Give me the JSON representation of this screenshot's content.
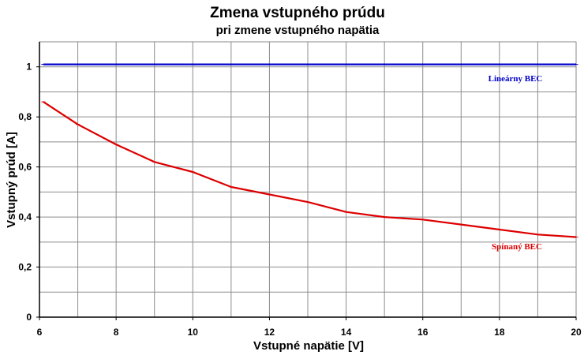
{
  "chart_data": {
    "type": "line",
    "title": "Zmena vstupného prúdu",
    "subtitle": "pri zmene vstupného napätia",
    "xlabel": "Vstupné napätie [V]",
    "ylabel": "Vstupný prúd [A]",
    "xlim": [
      6,
      20
    ],
    "ylim": [
      0,
      1.1
    ],
    "x_ticks": [
      6,
      8,
      10,
      12,
      14,
      16,
      18,
      20
    ],
    "x_tick_labels": [
      "6",
      "8",
      "10",
      "12",
      "14",
      "16",
      "18",
      "20"
    ],
    "x_grid_step": 1,
    "y_ticks": [
      0,
      0.2,
      0.4,
      0.6,
      0.8,
      1.0
    ],
    "y_tick_labels": [
      "0",
      "0,2",
      "0,4",
      "0,6",
      "0,8",
      "1"
    ],
    "y_grid_step": 0.1,
    "grid": true,
    "legend": "none",
    "series": [
      {
        "name": "Lineárny BEC",
        "color": "#0000cc",
        "x": [
          6.1,
          7,
          8,
          9,
          10,
          11,
          12,
          13,
          14,
          15,
          16,
          17,
          18,
          19,
          20
        ],
        "values": [
          1.01,
          1.01,
          1.01,
          1.01,
          1.01,
          1.01,
          1.01,
          1.01,
          1.01,
          1.01,
          1.01,
          1.01,
          1.01,
          1.01,
          1.01
        ]
      },
      {
        "name": "Spínaný BEC",
        "color": "#dd0000",
        "x": [
          6.1,
          7,
          8,
          9,
          10,
          11,
          12,
          13,
          14,
          15,
          16,
          17,
          18,
          19,
          20
        ],
        "values": [
          0.86,
          0.77,
          0.69,
          0.62,
          0.58,
          0.52,
          0.49,
          0.46,
          0.42,
          0.4,
          0.39,
          0.37,
          0.35,
          0.33,
          0.32
        ]
      }
    ]
  }
}
